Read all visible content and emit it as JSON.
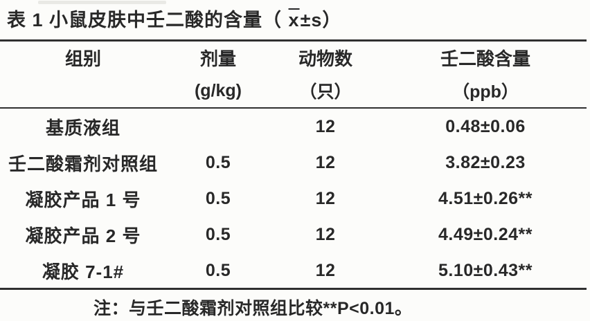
{
  "title": {
    "prefix": "表 1 小鼠皮肤中壬二酸的含量（ ",
    "mean_symbol": "x",
    "suffix": "±s）"
  },
  "table": {
    "columns": [
      {
        "line1": "组别",
        "line2": ""
      },
      {
        "line1": "剂量",
        "line2": "(g/kg)"
      },
      {
        "line1": "动物数",
        "line2": "（只）"
      },
      {
        "line1": "壬二酸含量",
        "line2": "（ppb）"
      }
    ],
    "rows": [
      {
        "group": "基质液组",
        "dose": "",
        "animals": "12",
        "content": "0.48±0.06"
      },
      {
        "group": "壬二酸霜剂对照组",
        "dose": "0.5",
        "animals": "12",
        "content": "3.82±0.23"
      },
      {
        "group": "凝胶产品 1 号",
        "dose": "0.5",
        "animals": "12",
        "content": "4.51±0.26**"
      },
      {
        "group": "凝胶产品 2 号",
        "dose": "0.5",
        "animals": "12",
        "content": "4.49±0.24**"
      },
      {
        "group": "凝胶 7-1#",
        "dose": "0.5",
        "animals": "12",
        "content": "5.10±0.43**"
      }
    ]
  },
  "note": "注：与壬二酸霜剂对照组比较**P<0.01。",
  "colors": {
    "background": "#fcfcfa",
    "text": "#282828",
    "rule": "#2f2f2f"
  }
}
